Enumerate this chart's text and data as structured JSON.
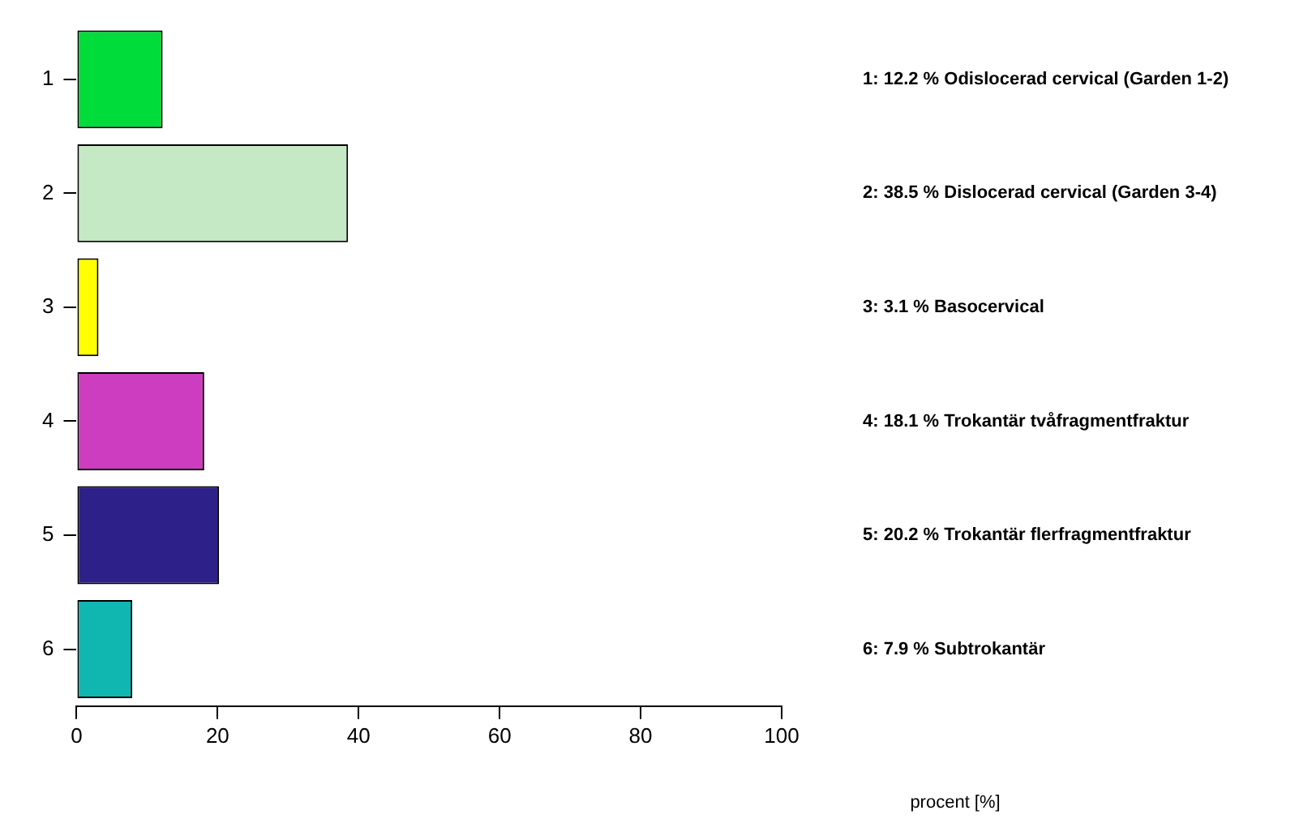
{
  "chart_data": {
    "type": "bar",
    "orientation": "horizontal",
    "categories": [
      "1",
      "2",
      "3",
      "4",
      "5",
      "6"
    ],
    "values": [
      12.2,
      38.5,
      3.1,
      18.1,
      20.2,
      7.9
    ],
    "colors": [
      "#00dd3a",
      "#c5e8c5",
      "#ffff00",
      "#cc3dbf",
      "#2e2089",
      "#10b6b0"
    ],
    "xlim": [
      0,
      100
    ],
    "xticks": [
      0,
      20,
      40,
      60,
      80,
      100
    ],
    "grid": false,
    "legend": false,
    "annotations": [
      "1: 12.2 % Odislocerad cervical (Garden 1-2)",
      "2: 38.5 % Dislocerad cervical (Garden 3-4)",
      "3: 3.1 % Basocervical",
      "4: 18.1 % Trokantär tvåfragmentfraktur",
      "5: 20.2 % Trokantär flerfragmentfraktur",
      "6: 7.9 % Subtrokantär",
      "procent [%]"
    ]
  }
}
